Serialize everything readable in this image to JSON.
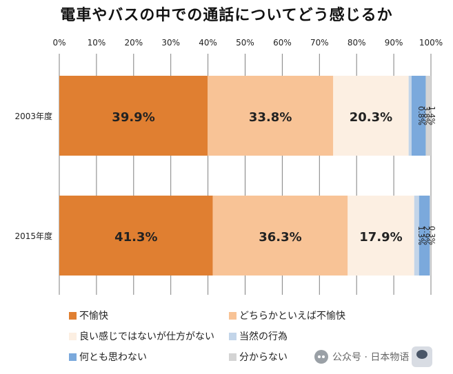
{
  "chart_data": {
    "type": "bar",
    "orientation": "horizontal",
    "stacked": true,
    "percent_stacked": true,
    "title": "電車やバスの中での通話についてどう感じるか",
    "categories": [
      "2003年度",
      "2015年度"
    ],
    "xlim": [
      0,
      100
    ],
    "x_ticks": [
      "0%",
      "10%",
      "20%",
      "30%",
      "40%",
      "50%",
      "60%",
      "70%",
      "80%",
      "90%",
      "100%"
    ],
    "grid": true,
    "legend_position": "bottom",
    "series": [
      {
        "name": "不愉快",
        "color": "#e07f31",
        "values": [
          39.9,
          41.3
        ],
        "labels": [
          "39.9%",
          "41.3%"
        ]
      },
      {
        "name": "どちらかといえば不愉快",
        "color": "#f8c396",
        "values": [
          33.8,
          36.3
        ],
        "labels": [
          "33.8%",
          "36.3%"
        ]
      },
      {
        "name": "良い感じではないが仕方がない",
        "color": "#fcefe2",
        "values": [
          20.3,
          17.9
        ],
        "labels": [
          "20.3%",
          "17.9%"
        ]
      },
      {
        "name": "当然の行為",
        "color": "#c3d5e9",
        "values": [
          0.8,
          1.3
        ],
        "labels": [
          "0.8%",
          "1.3%"
        ]
      },
      {
        "name": "何とも思わない",
        "color": "#7ba9dc",
        "values": [
          3.8,
          2.9
        ],
        "labels": [
          "3.8%",
          "2.9%"
        ]
      },
      {
        "name": "分からない",
        "color": "#d4d4d4",
        "values": [
          1.4,
          0.3
        ],
        "labels": [
          "1.4%",
          "0.3%"
        ]
      }
    ]
  },
  "watermark": {
    "text": "公众号 · 日本物语"
  }
}
